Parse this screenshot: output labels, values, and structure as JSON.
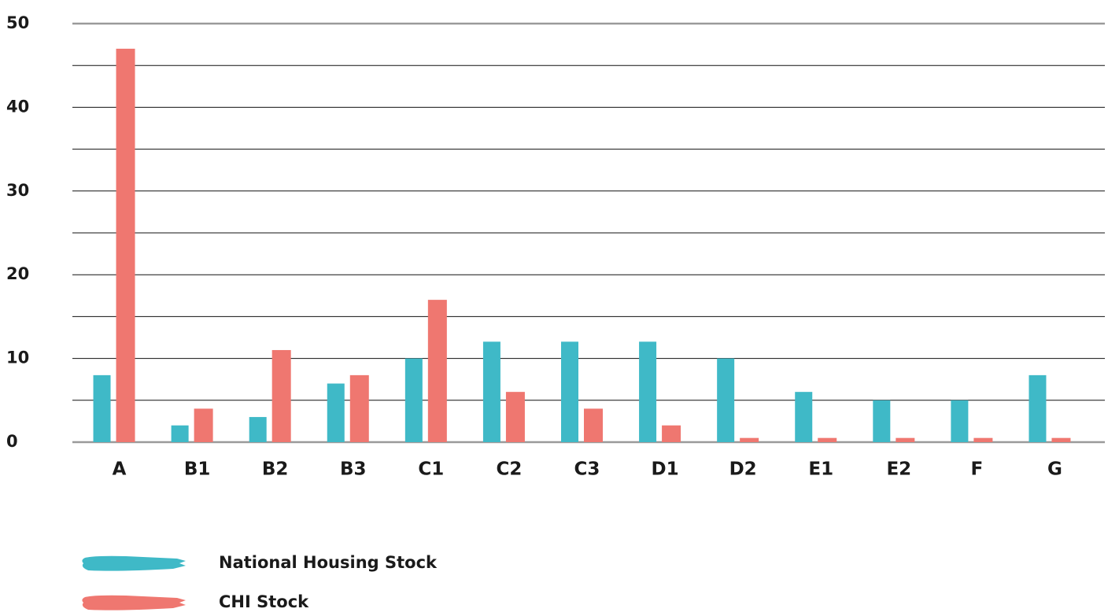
{
  "chart_data": {
    "type": "bar",
    "categories": [
      "A",
      "B1",
      "B2",
      "B3",
      "C1",
      "C2",
      "C3",
      "D1",
      "D2",
      "E1",
      "E2",
      "F",
      "G"
    ],
    "series": [
      {
        "name": "National Housing Stock",
        "color": "#3fb9c7",
        "values": [
          8,
          2,
          3,
          7,
          10,
          12,
          12,
          12,
          10,
          6,
          5,
          5,
          8
        ]
      },
      {
        "name": "CHI Stock",
        "color": "#ef7770",
        "values": [
          47,
          4,
          11,
          8,
          17,
          6,
          4,
          2,
          0.5,
          0.5,
          0.5,
          0.5,
          0.5
        ]
      }
    ],
    "ylim": [
      0,
      50
    ],
    "yticks": [
      0,
      10,
      20,
      30,
      40,
      50
    ],
    "yminorticks": [
      5,
      15,
      25,
      35,
      45
    ],
    "grid": true,
    "legend": "bottom-left"
  }
}
